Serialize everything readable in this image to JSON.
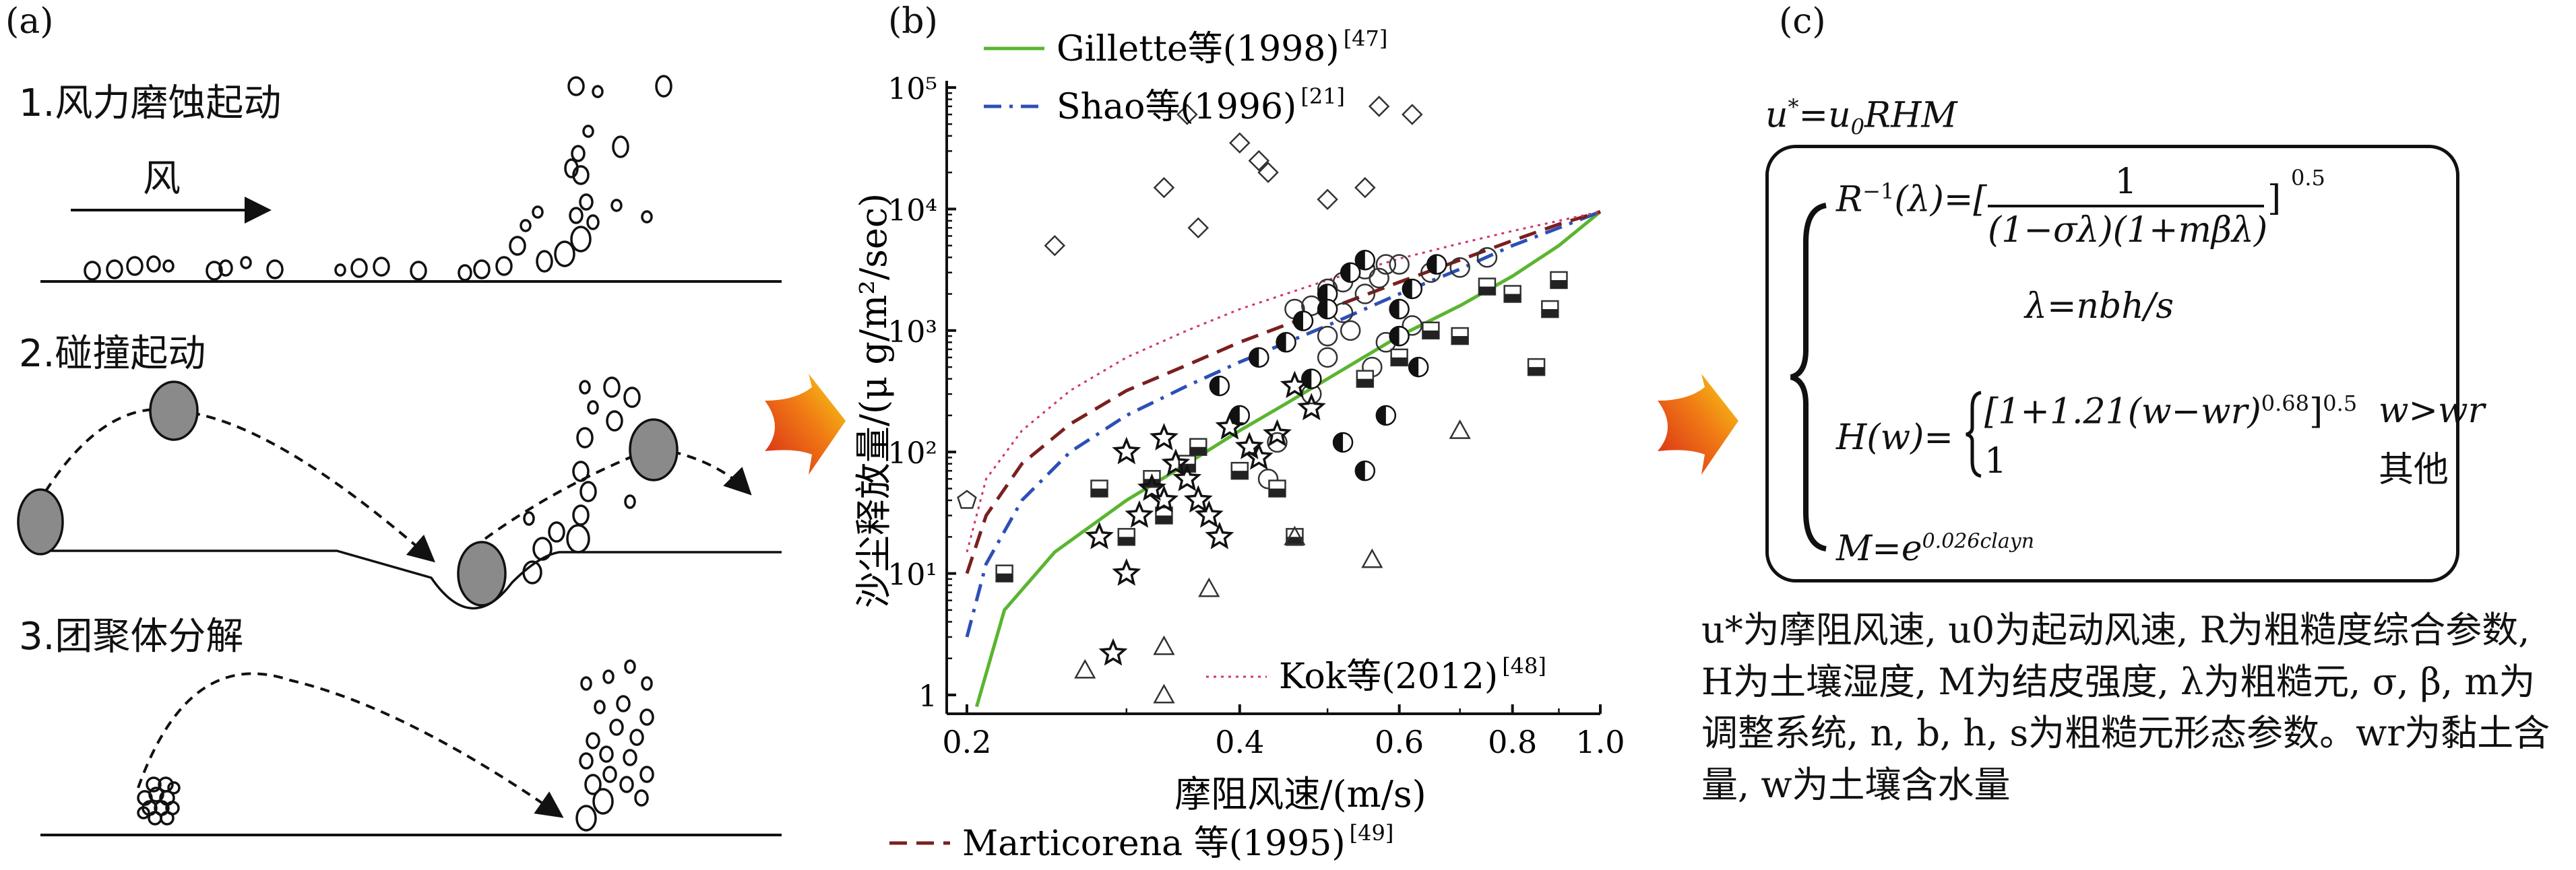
{
  "panels": {
    "a": {
      "label": "(a)",
      "steps": [
        "1.风力磨蚀起动",
        "2.碰撞起动",
        "3.团聚体分解"
      ],
      "wind": "风"
    },
    "b": {
      "label": "(b)"
    },
    "c": {
      "label": "(c)",
      "formula_top": "u*=u0RHM",
      "eq_R": "R⁻¹(λ)=[ 1 / ((1−σλ)(1+mβλ)) ]^0.5",
      "eq_R_lhs": "R",
      "eq_R_num": "1",
      "eq_R_den": "(1−σλ)(1+mβλ)",
      "eq_R_exp": "0.5",
      "eq_lambda": "λ=nbh/s",
      "eq_H_lhs": "H(w)=",
      "eq_H_case1": "[1+1.21(w−wr)",
      "eq_H_case1_exp": "0.68",
      "eq_H_case1_close": "]",
      "eq_H_case1_exp2": "0.5",
      "eq_H_cond1": "w>wr",
      "eq_H_case2": "1",
      "eq_H_cond2": "其他",
      "eq_M": "M=e",
      "eq_M_exp": "0.026clayn",
      "notes": "u*为摩阻风速, u0为起动风速, R为粗糙度综合参数, H为土壤湿度, M为结皮强度, λ为粗糙元, σ, β, m为调整系统, n, b, h, s为粗糙元形态参数。wr为黏土含量, w为土壤含水量"
    }
  },
  "arrows": {
    "color_start": "#d62718",
    "color_end": "#f7d417"
  },
  "chart_data": {
    "type": "scatter",
    "title": "",
    "xlabel": "摩阻风速/(m/s)",
    "ylabel": "沙尘释放量/(μ g/m²/sec)",
    "xscale": "log",
    "yscale": "log",
    "xlim": [
      0.19,
      1.0
    ],
    "ylim": [
      0.7,
      100000
    ],
    "xticks": [
      "0.2",
      "0.4",
      "0.6",
      "0.8",
      "1.0"
    ],
    "xtick_values": [
      0.2,
      0.4,
      0.6,
      0.8,
      1.0
    ],
    "yticks": [
      "1",
      "10¹",
      "10²",
      "10³",
      "10⁴",
      "10⁵"
    ],
    "ytick_values": [
      1,
      10,
      100,
      1000,
      10000,
      100000
    ],
    "legend_placement": "top-left / bottom",
    "lines": [
      {
        "name": "Gillette等(1998)",
        "ref": "[47]",
        "color": "#5ab52f",
        "dash": "solid",
        "x": [
          0.205,
          0.22,
          0.25,
          0.3,
          0.35,
          0.4,
          0.45,
          0.5,
          0.6,
          0.7,
          0.8,
          0.9,
          1.0
        ],
        "y": [
          0.8,
          5,
          15,
          40,
          80,
          150,
          250,
          400,
          900,
          1600,
          2800,
          5000,
          9500
        ]
      },
      {
        "name": "Shao等(1996)",
        "ref": "[21]",
        "color": "#2d4fb5",
        "dash": "dashdot",
        "x": [
          0.2,
          0.21,
          0.23,
          0.26,
          0.3,
          0.35,
          0.4,
          0.5,
          0.6,
          0.7,
          0.8,
          0.9,
          1.0
        ],
        "y": [
          3,
          12,
          40,
          100,
          200,
          350,
          550,
          1100,
          2000,
          3200,
          5000,
          7000,
          9500
        ]
      },
      {
        "name": "Marticorena 等(1995)",
        "ref": "[49]",
        "color": "#7a1f1f",
        "dash": "dash",
        "x": [
          0.2,
          0.21,
          0.23,
          0.26,
          0.3,
          0.35,
          0.4,
          0.5,
          0.6,
          0.7,
          0.8,
          0.9,
          1.0
        ],
        "y": [
          10,
          30,
          80,
          170,
          320,
          520,
          800,
          1500,
          2500,
          3800,
          5500,
          7500,
          9500
        ]
      },
      {
        "name": "Kok等(2012)",
        "ref": "[48]",
        "color": "#d2336f",
        "dash": "dot",
        "x": [
          0.2,
          0.21,
          0.23,
          0.26,
          0.3,
          0.35,
          0.4,
          0.5,
          0.6,
          0.7,
          0.8,
          0.9,
          1.0
        ],
        "y": [
          15,
          60,
          150,
          320,
          600,
          1000,
          1500,
          2600,
          3900,
          5200,
          6600,
          8000,
          9500
        ]
      }
    ],
    "markers": [
      {
        "shape": "diamond",
        "points": [
          [
            0.35,
            60000
          ],
          [
            0.4,
            35000
          ],
          [
            0.42,
            25000
          ],
          [
            0.43,
            20000
          ],
          [
            0.5,
            12000
          ],
          [
            0.55,
            15000
          ],
          [
            0.62,
            60000
          ],
          [
            0.57,
            70000
          ],
          [
            0.33,
            15000
          ],
          [
            0.36,
            7000
          ],
          [
            0.25,
            5000
          ]
        ]
      },
      {
        "shape": "circle",
        "points": [
          [
            0.5,
            600
          ],
          [
            0.5,
            900
          ],
          [
            0.52,
            1400
          ],
          [
            0.55,
            2000
          ],
          [
            0.57,
            2700
          ],
          [
            0.6,
            3500
          ],
          [
            0.53,
            1000
          ],
          [
            0.56,
            500
          ],
          [
            0.58,
            800
          ],
          [
            0.62,
            1100
          ],
          [
            0.48,
            300
          ],
          [
            0.46,
            1500
          ],
          [
            0.44,
            120
          ],
          [
            0.43,
            60
          ],
          [
            0.65,
            3000
          ],
          [
            0.7,
            3300
          ],
          [
            0.75,
            4000
          ],
          [
            0.58,
            3500
          ],
          [
            0.55,
            3200
          ],
          [
            0.52,
            2500
          ],
          [
            0.5,
            2200
          ],
          [
            0.48,
            1600
          ]
        ]
      },
      {
        "shape": "halfcircle",
        "points": [
          [
            0.45,
            800
          ],
          [
            0.47,
            1200
          ],
          [
            0.5,
            2000
          ],
          [
            0.53,
            3000
          ],
          [
            0.55,
            3800
          ],
          [
            0.6,
            900
          ],
          [
            0.6,
            1500
          ],
          [
            0.63,
            500
          ],
          [
            0.58,
            200
          ],
          [
            0.55,
            70
          ],
          [
            0.52,
            120
          ],
          [
            0.5,
            1500
          ],
          [
            0.48,
            400
          ],
          [
            0.42,
            600
          ],
          [
            0.4,
            200
          ],
          [
            0.38,
            350
          ],
          [
            0.62,
            2200
          ],
          [
            0.66,
            3500
          ]
        ]
      },
      {
        "shape": "square",
        "points": [
          [
            0.3,
            20
          ],
          [
            0.33,
            30
          ],
          [
            0.35,
            80
          ],
          [
            0.36,
            110
          ],
          [
            0.4,
            70
          ],
          [
            0.44,
            50
          ],
          [
            0.46,
            20
          ],
          [
            0.32,
            60
          ],
          [
            0.22,
            10
          ],
          [
            0.28,
            50
          ],
          [
            0.6,
            600
          ],
          [
            0.65,
            1000
          ],
          [
            0.7,
            900
          ],
          [
            0.75,
            2300
          ],
          [
            0.8,
            2000
          ],
          [
            0.85,
            500
          ],
          [
            0.88,
            1500
          ],
          [
            0.9,
            2600
          ],
          [
            0.55,
            400
          ]
        ]
      },
      {
        "shape": "star",
        "points": [
          [
            0.3,
            100
          ],
          [
            0.33,
            130
          ],
          [
            0.34,
            80
          ],
          [
            0.35,
            60
          ],
          [
            0.36,
            40
          ],
          [
            0.37,
            30
          ],
          [
            0.38,
            20
          ],
          [
            0.39,
            160
          ],
          [
            0.41,
            110
          ],
          [
            0.42,
            90
          ],
          [
            0.44,
            140
          ],
          [
            0.33,
            40
          ],
          [
            0.32,
            50
          ],
          [
            0.31,
            30
          ],
          [
            0.3,
            10
          ],
          [
            0.28,
            20
          ],
          [
            0.29,
            2.2
          ],
          [
            0.46,
            350
          ],
          [
            0.48,
            230
          ]
        ]
      },
      {
        "shape": "triangle",
        "points": [
          [
            0.27,
            1.6
          ],
          [
            0.33,
            1.0
          ],
          [
            0.33,
            2.5
          ],
          [
            0.37,
            7.5
          ],
          [
            0.46,
            20
          ],
          [
            0.56,
            13
          ],
          [
            0.7,
            150
          ]
        ]
      },
      {
        "shape": "pentagon",
        "points": [
          [
            0.2,
            40
          ]
        ]
      }
    ]
  }
}
